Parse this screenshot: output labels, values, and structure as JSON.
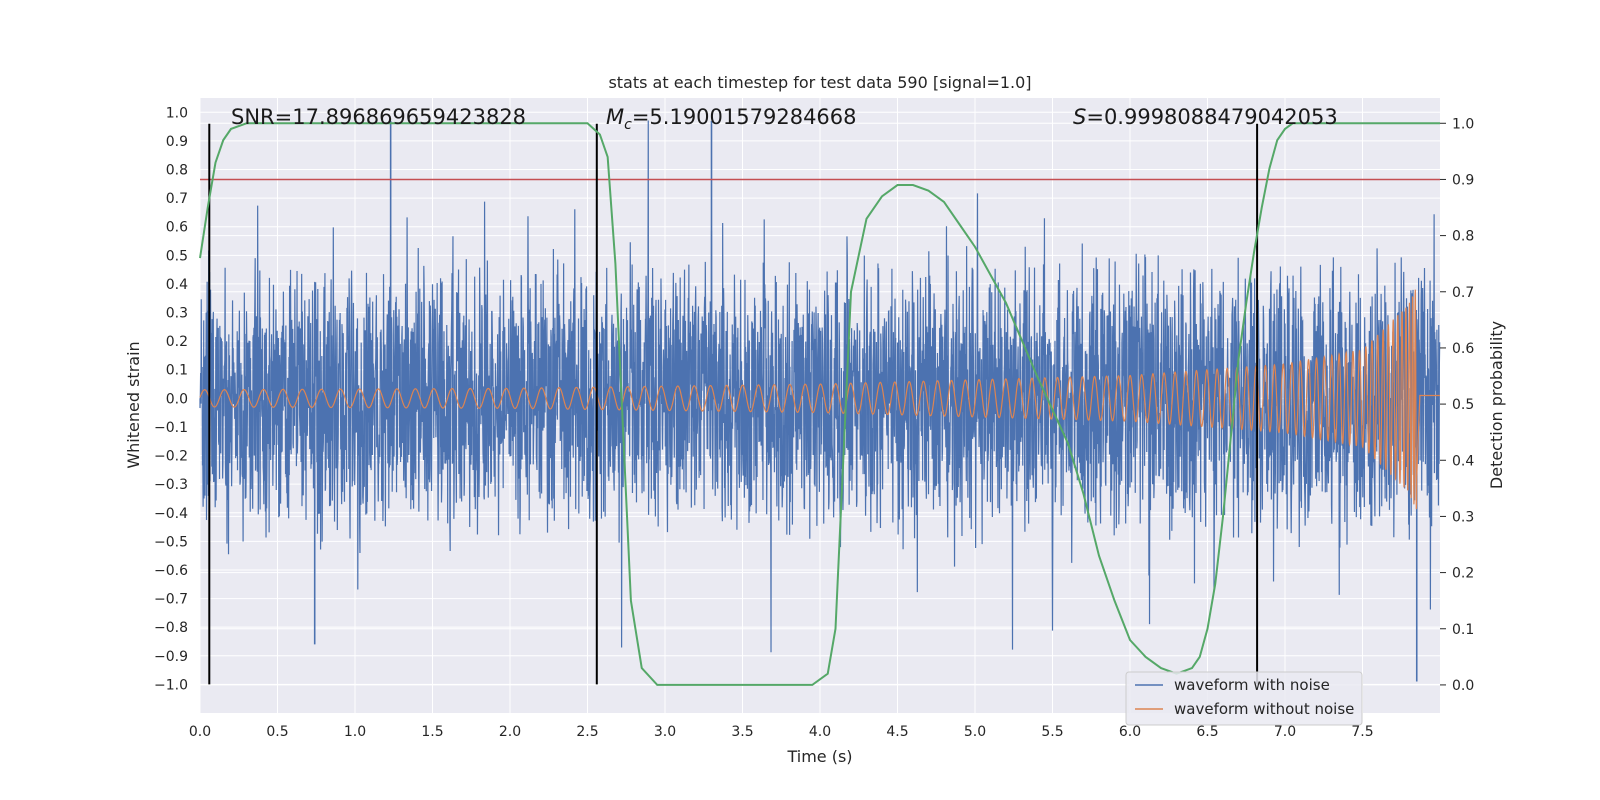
{
  "chart_data": {
    "type": "line",
    "title": "stats at each timestep for test data 590 [signal=1.0]",
    "xlabel": "Time (s)",
    "ylabel_left": "Whitened strain",
    "ylabel_right": "Detection probability",
    "xlim": [
      0.0,
      8.0
    ],
    "ylim_left": [
      -1.1,
      1.05
    ],
    "ylim_right": [
      -0.05,
      1.045
    ],
    "grid": true,
    "x_ticks": [
      "0.0",
      "0.5",
      "1.0",
      "1.5",
      "2.0",
      "2.5",
      "3.0",
      "3.5",
      "4.0",
      "4.5",
      "5.0",
      "5.5",
      "6.0",
      "6.5",
      "7.0",
      "7.5"
    ],
    "x_tick_values": [
      0.0,
      0.5,
      1.0,
      1.5,
      2.0,
      2.5,
      3.0,
      3.5,
      4.0,
      4.5,
      5.0,
      5.5,
      6.0,
      6.5,
      7.0,
      7.5
    ],
    "y_left_ticks": [
      "1.0",
      "0.9",
      "0.8",
      "0.7",
      "0.6",
      "0.5",
      "0.4",
      "0.3",
      "0.2",
      "0.1",
      "0.0",
      "−0.1",
      "−0.2",
      "−0.3",
      "−0.4",
      "−0.5",
      "−0.6",
      "−0.7",
      "−0.8",
      "−0.9",
      "−1.0"
    ],
    "y_left_tick_values": [
      1.0,
      0.9,
      0.8,
      0.7,
      0.6,
      0.5,
      0.4,
      0.3,
      0.2,
      0.1,
      0.0,
      -0.1,
      -0.2,
      -0.3,
      -0.4,
      -0.5,
      -0.6,
      -0.7,
      -0.8,
      -0.9,
      -1.0
    ],
    "y_right_ticks": [
      "1.0",
      "0.9",
      "0.8",
      "0.7",
      "0.6",
      "0.5",
      "0.4",
      "0.3",
      "0.2",
      "0.1",
      "0.0"
    ],
    "y_right_tick_values": [
      1.0,
      0.9,
      0.8,
      0.7,
      0.6,
      0.5,
      0.4,
      0.3,
      0.2,
      0.1,
      0.0
    ],
    "series": [
      {
        "name": "waveform with noise",
        "axis": "left",
        "color": "#4c72b0",
        "style": "dense noisy strain, max |value| 1.0",
        "x_range": [
          0.0,
          8.0
        ],
        "amplitude_envelope": 0.42,
        "notable_spikes": [
          {
            "x": 1.23,
            "y": 0.97
          },
          {
            "x": 3.3,
            "y": 0.97
          },
          {
            "x": 0.74,
            "y": -0.86
          },
          {
            "x": 7.85,
            "y": -0.99
          }
        ]
      },
      {
        "name": "waveform without noise",
        "axis": "left",
        "color": "#dd8452",
        "style": "chirp with growing amplitude, ends at merger",
        "x_range": [
          0.0,
          7.85
        ],
        "envelope": [
          {
            "x": 0.0,
            "amp": 0.03
          },
          {
            "x": 2.0,
            "amp": 0.035
          },
          {
            "x": 4.0,
            "amp": 0.05
          },
          {
            "x": 6.0,
            "amp": 0.08
          },
          {
            "x": 7.0,
            "amp": 0.12
          },
          {
            "x": 7.5,
            "amp": 0.17
          },
          {
            "x": 7.8,
            "amp": 0.33
          },
          {
            "x": 7.85,
            "amp": 0.4
          }
        ]
      },
      {
        "name": "detection probability",
        "axis": "right",
        "color": "#55a868",
        "x": [
          0.0,
          0.05,
          0.1,
          0.15,
          0.2,
          0.3,
          0.4,
          0.6,
          1.0,
          1.5,
          2.0,
          2.3,
          2.5,
          2.58,
          2.63,
          2.68,
          2.73,
          2.78,
          2.85,
          2.95,
          3.2,
          3.5,
          3.8,
          3.95,
          4.05,
          4.1,
          4.15,
          4.2,
          4.3,
          4.4,
          4.5,
          4.6,
          4.7,
          4.8,
          4.9,
          5.0,
          5.2,
          5.4,
          5.5,
          5.6,
          5.7,
          5.8,
          5.9,
          6.0,
          6.1,
          6.2,
          6.3,
          6.35,
          6.4,
          6.45,
          6.5,
          6.55,
          6.6,
          6.65,
          6.7,
          6.75,
          6.8,
          6.85,
          6.9,
          6.95,
          7.0,
          7.05,
          7.1,
          7.2,
          7.5,
          8.0
        ],
        "y": [
          0.76,
          0.85,
          0.93,
          0.97,
          0.99,
          1.0,
          1.0,
          1.0,
          1.0,
          1.0,
          1.0,
          1.0,
          1.0,
          0.98,
          0.94,
          0.75,
          0.45,
          0.15,
          0.03,
          0.0,
          0.0,
          0.0,
          0.0,
          0.0,
          0.02,
          0.1,
          0.4,
          0.7,
          0.83,
          0.87,
          0.89,
          0.89,
          0.88,
          0.86,
          0.82,
          0.78,
          0.68,
          0.55,
          0.49,
          0.43,
          0.34,
          0.23,
          0.15,
          0.08,
          0.05,
          0.03,
          0.02,
          0.025,
          0.03,
          0.05,
          0.1,
          0.18,
          0.3,
          0.44,
          0.58,
          0.68,
          0.77,
          0.85,
          0.92,
          0.97,
          0.99,
          1.0,
          1.0,
          1.0,
          1.0,
          1.0
        ]
      }
    ],
    "hlines": [
      {
        "axis": "right",
        "y": 0.9,
        "color": "#c44e52"
      }
    ],
    "vlines": [
      {
        "x": 0.06,
        "y_range_left": [
          -1.0,
          0.96
        ],
        "color": "#000000"
      },
      {
        "x": 2.56,
        "y_range_left": [
          -1.0,
          0.96
        ],
        "color": "#000000"
      },
      {
        "x": 6.82,
        "y_range_left": [
          -1.0,
          0.96
        ],
        "color": "#000000"
      }
    ],
    "annotations": [
      {
        "text": "SNR=17.896869659423828",
        "x": 0.2,
        "y": 0.99
      },
      {
        "text_main": "M",
        "text_sub": "c",
        "text_rest": "=5.19001579284668",
        "x": 2.62,
        "y": 0.99
      },
      {
        "text_main": "S",
        "text_rest": "=0.9998088479042053",
        "x": 5.6,
        "y": 0.99
      }
    ],
    "legend": {
      "placement": "bottom-right",
      "entries": [
        {
          "label": "waveform with noise",
          "color": "#4c72b0"
        },
        {
          "label": "waveform without noise",
          "color": "#dd8452"
        }
      ]
    }
  }
}
